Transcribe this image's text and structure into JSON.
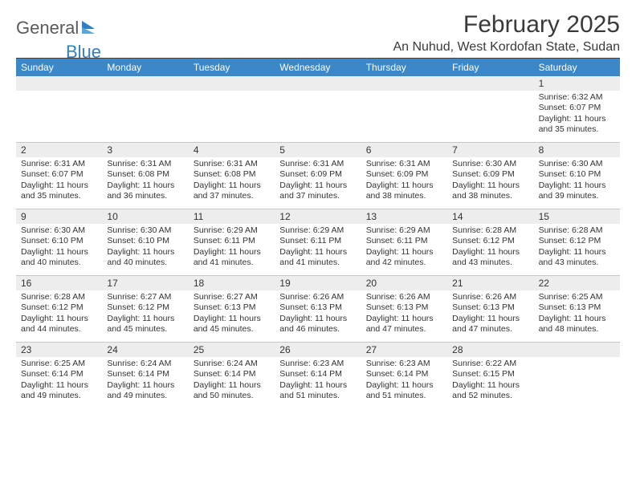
{
  "logo": {
    "part1": "General",
    "part2": "Blue"
  },
  "title": "February 2025",
  "location": "An Nuhud, West Kordofan State, Sudan",
  "colors": {
    "header_bg": "#3b87c8",
    "band_bg": "#ededed",
    "rule": "#444444",
    "text": "#333333",
    "logo_gray": "#5a5a5a",
    "logo_blue": "#2f7fc2"
  },
  "day_names": [
    "Sunday",
    "Monday",
    "Tuesday",
    "Wednesday",
    "Thursday",
    "Friday",
    "Saturday"
  ],
  "weeks": [
    [
      {
        "n": "",
        "lines": []
      },
      {
        "n": "",
        "lines": []
      },
      {
        "n": "",
        "lines": []
      },
      {
        "n": "",
        "lines": []
      },
      {
        "n": "",
        "lines": []
      },
      {
        "n": "",
        "lines": []
      },
      {
        "n": "1",
        "lines": [
          "Sunrise: 6:32 AM",
          "Sunset: 6:07 PM",
          "Daylight: 11 hours and 35 minutes."
        ]
      }
    ],
    [
      {
        "n": "2",
        "lines": [
          "Sunrise: 6:31 AM",
          "Sunset: 6:07 PM",
          "Daylight: 11 hours and 35 minutes."
        ]
      },
      {
        "n": "3",
        "lines": [
          "Sunrise: 6:31 AM",
          "Sunset: 6:08 PM",
          "Daylight: 11 hours and 36 minutes."
        ]
      },
      {
        "n": "4",
        "lines": [
          "Sunrise: 6:31 AM",
          "Sunset: 6:08 PM",
          "Daylight: 11 hours and 37 minutes."
        ]
      },
      {
        "n": "5",
        "lines": [
          "Sunrise: 6:31 AM",
          "Sunset: 6:09 PM",
          "Daylight: 11 hours and 37 minutes."
        ]
      },
      {
        "n": "6",
        "lines": [
          "Sunrise: 6:31 AM",
          "Sunset: 6:09 PM",
          "Daylight: 11 hours and 38 minutes."
        ]
      },
      {
        "n": "7",
        "lines": [
          "Sunrise: 6:30 AM",
          "Sunset: 6:09 PM",
          "Daylight: 11 hours and 38 minutes."
        ]
      },
      {
        "n": "8",
        "lines": [
          "Sunrise: 6:30 AM",
          "Sunset: 6:10 PM",
          "Daylight: 11 hours and 39 minutes."
        ]
      }
    ],
    [
      {
        "n": "9",
        "lines": [
          "Sunrise: 6:30 AM",
          "Sunset: 6:10 PM",
          "Daylight: 11 hours and 40 minutes."
        ]
      },
      {
        "n": "10",
        "lines": [
          "Sunrise: 6:30 AM",
          "Sunset: 6:10 PM",
          "Daylight: 11 hours and 40 minutes."
        ]
      },
      {
        "n": "11",
        "lines": [
          "Sunrise: 6:29 AM",
          "Sunset: 6:11 PM",
          "Daylight: 11 hours and 41 minutes."
        ]
      },
      {
        "n": "12",
        "lines": [
          "Sunrise: 6:29 AM",
          "Sunset: 6:11 PM",
          "Daylight: 11 hours and 41 minutes."
        ]
      },
      {
        "n": "13",
        "lines": [
          "Sunrise: 6:29 AM",
          "Sunset: 6:11 PM",
          "Daylight: 11 hours and 42 minutes."
        ]
      },
      {
        "n": "14",
        "lines": [
          "Sunrise: 6:28 AM",
          "Sunset: 6:12 PM",
          "Daylight: 11 hours and 43 minutes."
        ]
      },
      {
        "n": "15",
        "lines": [
          "Sunrise: 6:28 AM",
          "Sunset: 6:12 PM",
          "Daylight: 11 hours and 43 minutes."
        ]
      }
    ],
    [
      {
        "n": "16",
        "lines": [
          "Sunrise: 6:28 AM",
          "Sunset: 6:12 PM",
          "Daylight: 11 hours and 44 minutes."
        ]
      },
      {
        "n": "17",
        "lines": [
          "Sunrise: 6:27 AM",
          "Sunset: 6:12 PM",
          "Daylight: 11 hours and 45 minutes."
        ]
      },
      {
        "n": "18",
        "lines": [
          "Sunrise: 6:27 AM",
          "Sunset: 6:13 PM",
          "Daylight: 11 hours and 45 minutes."
        ]
      },
      {
        "n": "19",
        "lines": [
          "Sunrise: 6:26 AM",
          "Sunset: 6:13 PM",
          "Daylight: 11 hours and 46 minutes."
        ]
      },
      {
        "n": "20",
        "lines": [
          "Sunrise: 6:26 AM",
          "Sunset: 6:13 PM",
          "Daylight: 11 hours and 47 minutes."
        ]
      },
      {
        "n": "21",
        "lines": [
          "Sunrise: 6:26 AM",
          "Sunset: 6:13 PM",
          "Daylight: 11 hours and 47 minutes."
        ]
      },
      {
        "n": "22",
        "lines": [
          "Sunrise: 6:25 AM",
          "Sunset: 6:13 PM",
          "Daylight: 11 hours and 48 minutes."
        ]
      }
    ],
    [
      {
        "n": "23",
        "lines": [
          "Sunrise: 6:25 AM",
          "Sunset: 6:14 PM",
          "Daylight: 11 hours and 49 minutes."
        ]
      },
      {
        "n": "24",
        "lines": [
          "Sunrise: 6:24 AM",
          "Sunset: 6:14 PM",
          "Daylight: 11 hours and 49 minutes."
        ]
      },
      {
        "n": "25",
        "lines": [
          "Sunrise: 6:24 AM",
          "Sunset: 6:14 PM",
          "Daylight: 11 hours and 50 minutes."
        ]
      },
      {
        "n": "26",
        "lines": [
          "Sunrise: 6:23 AM",
          "Sunset: 6:14 PM",
          "Daylight: 11 hours and 51 minutes."
        ]
      },
      {
        "n": "27",
        "lines": [
          "Sunrise: 6:23 AM",
          "Sunset: 6:14 PM",
          "Daylight: 11 hours and 51 minutes."
        ]
      },
      {
        "n": "28",
        "lines": [
          "Sunrise: 6:22 AM",
          "Sunset: 6:15 PM",
          "Daylight: 11 hours and 52 minutes."
        ]
      },
      {
        "n": "",
        "lines": []
      }
    ]
  ]
}
